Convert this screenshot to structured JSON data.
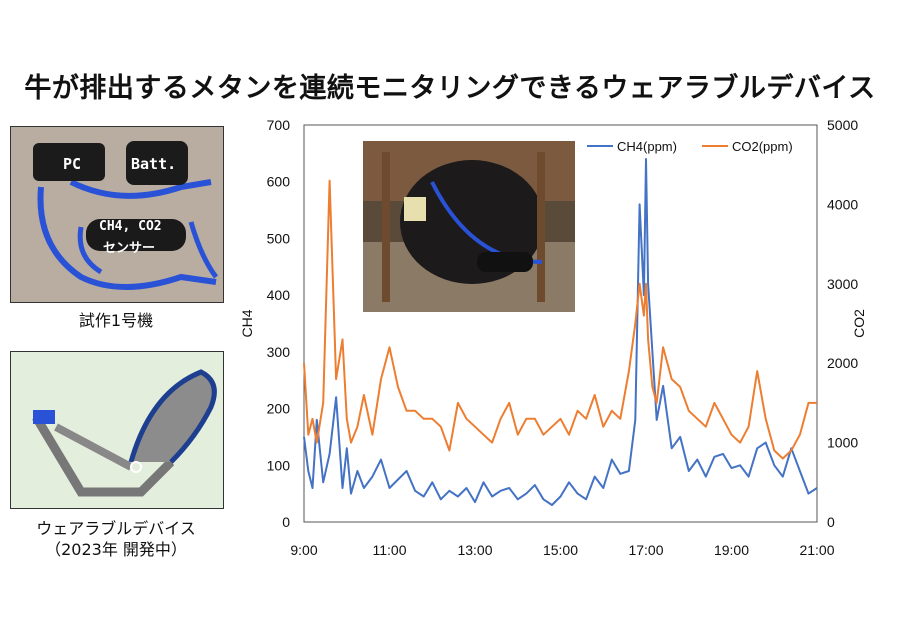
{
  "title": "牛が排出するメタンを連続モニタリングできるウェアラブルデバイス",
  "prototype": {
    "caption": "試作1号機",
    "labels": {
      "pc": "PC",
      "batt": "Batt.",
      "sensor_gas": "CH4, CO2",
      "sensor_word": "センサー"
    }
  },
  "wearable": {
    "caption_line1": "ウェアラブルデバイス",
    "caption_line2": "（2023年 開発中）"
  },
  "colors": {
    "ch4": "#4472C4",
    "co2": "#ED7D31",
    "strap_blue": "#2a52d6"
  },
  "chart_data": {
    "type": "line",
    "ylabel_left": "CH4",
    "ylabel_right": "CO2",
    "x_ticks": [
      "9:00",
      "11:00",
      "13:00",
      "15:00",
      "17:00",
      "19:00",
      "21:00"
    ],
    "y_left_ticks": [
      "0",
      "100",
      "200",
      "300",
      "400",
      "500",
      "600",
      "700"
    ],
    "y_right_ticks": [
      "0",
      "1000",
      "2000",
      "3000",
      "4000",
      "5000"
    ],
    "ylim_left": [
      0,
      700
    ],
    "ylim_right": [
      0,
      5000
    ],
    "xlim_hours": [
      9,
      21
    ],
    "legend_position": "top-right",
    "series": [
      {
        "name": "CH4(ppm)",
        "axis": "left",
        "x": [
          9.0,
          9.1,
          9.2,
          9.3,
          9.45,
          9.6,
          9.75,
          9.9,
          10.0,
          10.1,
          10.25,
          10.4,
          10.6,
          10.8,
          11.0,
          11.2,
          11.4,
          11.6,
          11.8,
          12.0,
          12.2,
          12.4,
          12.6,
          12.8,
          13.0,
          13.2,
          13.4,
          13.6,
          13.8,
          14.0,
          14.2,
          14.4,
          14.6,
          14.8,
          15.0,
          15.2,
          15.4,
          15.6,
          15.8,
          16.0,
          16.2,
          16.4,
          16.6,
          16.75,
          16.85,
          16.95,
          17.0,
          17.05,
          17.15,
          17.25,
          17.4,
          17.6,
          17.8,
          18.0,
          18.2,
          18.4,
          18.6,
          18.8,
          19.0,
          19.2,
          19.4,
          19.6,
          19.8,
          20.0,
          20.2,
          20.4,
          20.6,
          20.8,
          21.0
        ],
        "y": [
          150,
          90,
          60,
          180,
          70,
          120,
          220,
          60,
          130,
          50,
          90,
          60,
          80,
          110,
          60,
          75,
          90,
          55,
          45,
          70,
          40,
          55,
          45,
          60,
          35,
          70,
          45,
          55,
          60,
          40,
          50,
          65,
          40,
          30,
          45,
          70,
          50,
          40,
          80,
          60,
          110,
          85,
          90,
          180,
          560,
          400,
          640,
          420,
          300,
          180,
          240,
          130,
          150,
          90,
          110,
          80,
          115,
          120,
          95,
          100,
          80,
          130,
          140,
          100,
          80,
          130,
          90,
          50,
          60
        ]
      },
      {
        "name": "CO2(ppm)",
        "axis": "right",
        "x": [
          9.0,
          9.1,
          9.2,
          9.3,
          9.45,
          9.6,
          9.75,
          9.9,
          10.0,
          10.1,
          10.25,
          10.4,
          10.6,
          10.8,
          11.0,
          11.2,
          11.4,
          11.6,
          11.8,
          12.0,
          12.2,
          12.4,
          12.6,
          12.8,
          13.0,
          13.2,
          13.4,
          13.6,
          13.8,
          14.0,
          14.2,
          14.4,
          14.6,
          14.8,
          15.0,
          15.2,
          15.4,
          15.6,
          15.8,
          16.0,
          16.2,
          16.4,
          16.6,
          16.75,
          16.85,
          16.95,
          17.0,
          17.05,
          17.15,
          17.25,
          17.4,
          17.6,
          17.8,
          18.0,
          18.2,
          18.4,
          18.6,
          18.8,
          19.0,
          19.2,
          19.4,
          19.6,
          19.8,
          20.0,
          20.2,
          20.4,
          20.6,
          20.8,
          21.0
        ],
        "y": [
          2000,
          1100,
          1300,
          1000,
          1500,
          4300,
          1800,
          2300,
          1300,
          1000,
          1200,
          1600,
          1100,
          1800,
          2200,
          1700,
          1400,
          1400,
          1300,
          1300,
          1200,
          900,
          1500,
          1300,
          1200,
          1100,
          1000,
          1300,
          1500,
          1100,
          1300,
          1300,
          1100,
          1200,
          1300,
          1100,
          1400,
          1300,
          1600,
          1200,
          1400,
          1300,
          1900,
          2500,
          3000,
          2600,
          3000,
          2300,
          1700,
          1500,
          2200,
          1800,
          1700,
          1400,
          1300,
          1200,
          1500,
          1300,
          1100,
          1000,
          1200,
          1900,
          1300,
          900,
          800,
          900,
          1100,
          1500,
          1500
        ]
      }
    ]
  }
}
